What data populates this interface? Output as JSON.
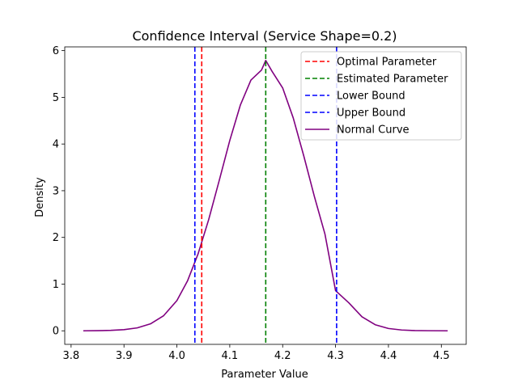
{
  "chart_data": {
    "type": "line",
    "title": "Confidence Interval (Service Shape=0.2)",
    "xlabel": "Parameter Value",
    "ylabel": "Density",
    "xlim": [
      3.788,
      4.547
    ],
    "ylim": [
      -0.29,
      6.08
    ],
    "x_ticks": [
      3.8,
      3.9,
      4.0,
      4.1,
      4.2,
      4.3,
      4.4,
      4.5
    ],
    "x_tick_labels": [
      "3.8",
      "3.9",
      "4.0",
      "4.1",
      "4.2",
      "4.3",
      "4.4",
      "4.5"
    ],
    "y_ticks": [
      0,
      1,
      2,
      3,
      4,
      5,
      6
    ],
    "y_tick_labels": [
      "0",
      "1",
      "2",
      "3",
      "4",
      "5",
      "6"
    ],
    "grid": false,
    "legend_position": "top-right",
    "vlines": [
      {
        "name": "Optimal Parameter",
        "x": 4.047,
        "color": "#ff0000",
        "style": "dashed"
      },
      {
        "name": "Estimated Parameter",
        "x": 4.168,
        "color": "#008000",
        "style": "dashed"
      },
      {
        "name": "Lower Bound",
        "x": 4.034,
        "color": "#0000ff",
        "style": "dashed"
      },
      {
        "name": "Upper Bound",
        "x": 4.302,
        "color": "#0000ff",
        "style": "dashed"
      }
    ],
    "series": [
      {
        "name": "Normal Curve",
        "color": "#800080",
        "style": "solid",
        "x": [
          3.823,
          3.85,
          3.875,
          3.9,
          3.925,
          3.95,
          3.975,
          4.0,
          4.02,
          4.04,
          4.06,
          4.08,
          4.1,
          4.12,
          4.14,
          4.16,
          4.168,
          4.18,
          4.2,
          4.22,
          4.24,
          4.26,
          4.28,
          4.3,
          4.325,
          4.35,
          4.375,
          4.4,
          4.425,
          4.45,
          4.475,
          4.512
        ],
        "y": [
          0.0,
          0.003,
          0.009,
          0.025,
          0.063,
          0.149,
          0.324,
          0.647,
          1.066,
          1.645,
          2.377,
          3.217,
          4.075,
          4.834,
          5.37,
          5.584,
          5.79,
          5.555,
          5.201,
          4.558,
          3.741,
          2.875,
          2.069,
          0.86,
          0.6,
          0.3,
          0.13,
          0.05,
          0.017,
          0.005,
          0.002,
          0.0
        ]
      }
    ]
  }
}
